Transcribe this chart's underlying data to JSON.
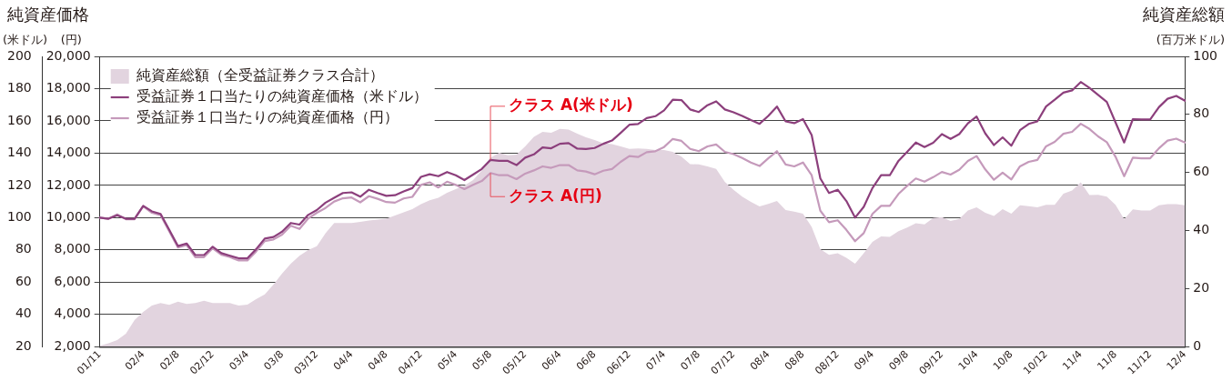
{
  "chart_data": {
    "type": "line",
    "title": "純資産価格",
    "ylabel": "(円)",
    "y3label": "(米ドル)",
    "y2label": "純資産総額\n(百万米ドル)",
    "categories": [
      "01/11",
      null,
      null,
      null,
      null,
      "02/4",
      null,
      null,
      null,
      "02/8",
      null,
      null,
      null,
      "02/12",
      null,
      null,
      null,
      "03/4",
      null,
      null,
      null,
      "03/8",
      null,
      null,
      null,
      "03/12",
      null,
      null,
      null,
      "04/4",
      null,
      null,
      null,
      "04/8",
      null,
      null,
      null,
      "04/12",
      null,
      null,
      null,
      "05/4",
      null,
      null,
      null,
      "05/8",
      null,
      null,
      null,
      "05/12",
      null,
      null,
      null,
      "06/4",
      null,
      null,
      null,
      "06/8",
      null,
      null,
      null,
      "06/12",
      null,
      null,
      null,
      "07/4",
      null,
      null,
      null,
      "07/8",
      null,
      null,
      null,
      "07/12",
      null,
      null,
      null,
      "08/4",
      null,
      null,
      null,
      "08/8",
      null,
      null,
      null,
      "08/12",
      null,
      null,
      null,
      "09/4",
      null,
      null,
      null,
      "09/8",
      null,
      null,
      null,
      "09/12",
      null,
      null,
      null,
      "10/4",
      null,
      null,
      null,
      "10/8",
      null,
      null,
      null,
      "10/12",
      null,
      null,
      null,
      "11/4",
      null,
      null,
      null,
      "11/8",
      null,
      null,
      null,
      "11/12",
      null,
      null,
      null,
      "12/4"
    ],
    "series": [
      {
        "name": "純資産総額（全受益証券クラス合計）",
        "type": "area",
        "axis": "y2",
        "color": "#e2d4df",
        "values": [
          0.3,
          1.2,
          2.3,
          4.5,
          9.2,
          12,
          14.2,
          15,
          14.4,
          15.5,
          14.7,
          15,
          15.8,
          15,
          15,
          15,
          14.2,
          14.5,
          16.4,
          18,
          21.4,
          25.2,
          28.6,
          31.3,
          33.3,
          34.6,
          39.1,
          42.6,
          42.6,
          42.6,
          43,
          43.5,
          43.8,
          44.1,
          45.2,
          46.3,
          47.4,
          49.1,
          50.4,
          51.3,
          53,
          54.3,
          55.5,
          57.4,
          60.7,
          65.1,
          66.8,
          65.9,
          66.2,
          69,
          72.3,
          74,
          73.7,
          75,
          74.8,
          73.4,
          72.1,
          71.2,
          70.1,
          69.8,
          69,
          68.1,
          68.3,
          68.1,
          67.7,
          67.7,
          67.1,
          65.5,
          62.9,
          62.8,
          62.1,
          61.2,
          56.8,
          54,
          51.7,
          49.9,
          48.3,
          49.2,
          50.2,
          47.1,
          46.5,
          45.8,
          41.3,
          33.6,
          31.6,
          32.2,
          30.6,
          28.6,
          32.2,
          36.1,
          38,
          37.8,
          39.8,
          41,
          42.5,
          42.1,
          44.3,
          44.6,
          43.3,
          44,
          46.9,
          48,
          46.1,
          45,
          47.4,
          45.8,
          48.7,
          48.4,
          48,
          48.9,
          48.9,
          52.7,
          53.8,
          56.6,
          52.2,
          52.3,
          51.7,
          48.9,
          43.9,
          47.3,
          46.9,
          46.9,
          48.7,
          49.1,
          49.1,
          48.7
        ]
      },
      {
        "name": "受益証券１口当たりの純資産価格（米ドル）",
        "type": "line",
        "axis": "y3",
        "color": "#8c3f7c",
        "values": [
          100,
          99.3,
          101.5,
          99.3,
          99.3,
          107.3,
          103.9,
          102.3,
          92.4,
          82.4,
          84,
          76.8,
          76.8,
          82,
          78,
          76.4,
          74.8,
          74.8,
          80.4,
          87,
          88,
          91.3,
          96.7,
          95.7,
          101.7,
          104.7,
          109.3,
          112.3,
          115.3,
          115.7,
          113,
          117.3,
          115.3,
          113.5,
          113.9,
          116.3,
          118.3,
          125.3,
          126.9,
          125.7,
          128.3,
          126.3,
          123.3,
          126.7,
          130.2,
          135.8,
          135.2,
          135.2,
          132.6,
          137.2,
          139.2,
          143.6,
          143,
          145.8,
          146.2,
          142.8,
          142.6,
          143.2,
          145.8,
          147.8,
          152.6,
          157.6,
          158.1,
          161.7,
          162.9,
          166.5,
          173.1,
          172.9,
          167.1,
          165.5,
          169.7,
          172.1,
          167.1,
          165.3,
          163.1,
          160.5,
          158.2,
          163.1,
          168.9,
          159.7,
          158.6,
          161.1,
          151.2,
          124.3,
          115.3,
          117.3,
          110.3,
          100,
          106.7,
          118.3,
          126.3,
          126.3,
          135.2,
          140.8,
          146.6,
          143.8,
          146.4,
          151.8,
          148.8,
          151.8,
          158.5,
          162.7,
          152.2,
          145,
          149.8,
          144.6,
          154.2,
          158.1,
          159.7,
          168.9,
          173.1,
          177.5,
          178.9,
          184.1,
          180.5,
          176.1,
          171.7,
          159.1,
          146.6,
          161.1,
          160.9,
          160.9,
          168.5,
          173.7,
          175.5,
          172.5
        ]
      },
      {
        "name": "受益証券１口当たりの純資産価格（円）",
        "type": "line",
        "axis": "y",
        "color": "#c59abb",
        "values": [
          10000,
          9930,
          10200,
          9900,
          9900,
          10700,
          10300,
          10150,
          9150,
          8150,
          8300,
          7550,
          7550,
          8100,
          7700,
          7550,
          7350,
          7350,
          7900,
          8550,
          8650,
          8950,
          9500,
          9300,
          9950,
          10300,
          10600,
          11000,
          11200,
          11250,
          10950,
          11330,
          11170,
          10970,
          10930,
          11190,
          11290,
          12030,
          12190,
          11870,
          12230,
          12030,
          11770,
          12030,
          12270,
          12770,
          12630,
          12630,
          12390,
          12730,
          12930,
          13180,
          13090,
          13260,
          13260,
          12930,
          12860,
          12690,
          12910,
          13020,
          13460,
          13820,
          13760,
          14060,
          14120,
          14380,
          14880,
          14760,
          14260,
          14120,
          14420,
          14540,
          14080,
          13940,
          13700,
          13420,
          13200,
          13680,
          14120,
          13300,
          13180,
          13420,
          12630,
          10430,
          9720,
          9840,
          9240,
          8540,
          9040,
          10230,
          10730,
          10730,
          11470,
          11970,
          12430,
          12230,
          12510,
          12830,
          12670,
          12970,
          13520,
          13820,
          12990,
          12350,
          12790,
          12370,
          13180,
          13460,
          13580,
          14420,
          14700,
          15200,
          15320,
          15820,
          15500,
          15040,
          14680,
          13780,
          12570,
          13720,
          13680,
          13680,
          14300,
          14780,
          14900,
          14660
        ]
      }
    ],
    "ylim": [
      2000,
      20000
    ],
    "yticks": [
      {
        "value": 2000,
        "label": "2,000"
      },
      {
        "value": 4000,
        "label": "4,000"
      },
      {
        "value": 6000,
        "label": "6,000"
      },
      {
        "value": 8000,
        "label": "8,000"
      },
      {
        "value": 10000,
        "label": "10,000"
      },
      {
        "value": 12000,
        "label": "12,000"
      },
      {
        "value": 14000,
        "label": "14,000"
      },
      {
        "value": 16000,
        "label": "16,000"
      },
      {
        "value": 18000,
        "label": "18,000"
      },
      {
        "value": 20000,
        "label": "20,000"
      }
    ],
    "y3lim": [
      20,
      200
    ],
    "y3ticks": [
      20,
      40,
      60,
      80,
      100,
      120,
      140,
      160,
      180,
      200
    ],
    "y2lim": [
      0,
      100
    ],
    "y2ticks": [
      0,
      20,
      40,
      60,
      80,
      100
    ],
    "annotations": [
      {
        "text": "クラス A(米ドル)",
        "x": "05/8",
        "y": 13580
      },
      {
        "text": "クラス A(円)",
        "x": "05/8",
        "y": 12770
      }
    ],
    "grid": "y",
    "legend": "top left",
    "marker": "none"
  }
}
